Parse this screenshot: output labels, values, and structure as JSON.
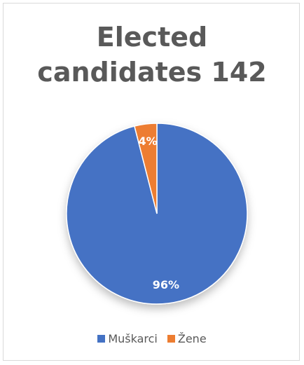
{
  "chart_data": {
    "type": "pie",
    "title": "Elected candidates 142",
    "categories": [
      "Muškarci",
      "Žene"
    ],
    "values": [
      96,
      4
    ],
    "value_labels": [
      "96%",
      "4%"
    ],
    "colors": [
      "#4472c4",
      "#ed7d31"
    ],
    "legend": "bottom"
  }
}
